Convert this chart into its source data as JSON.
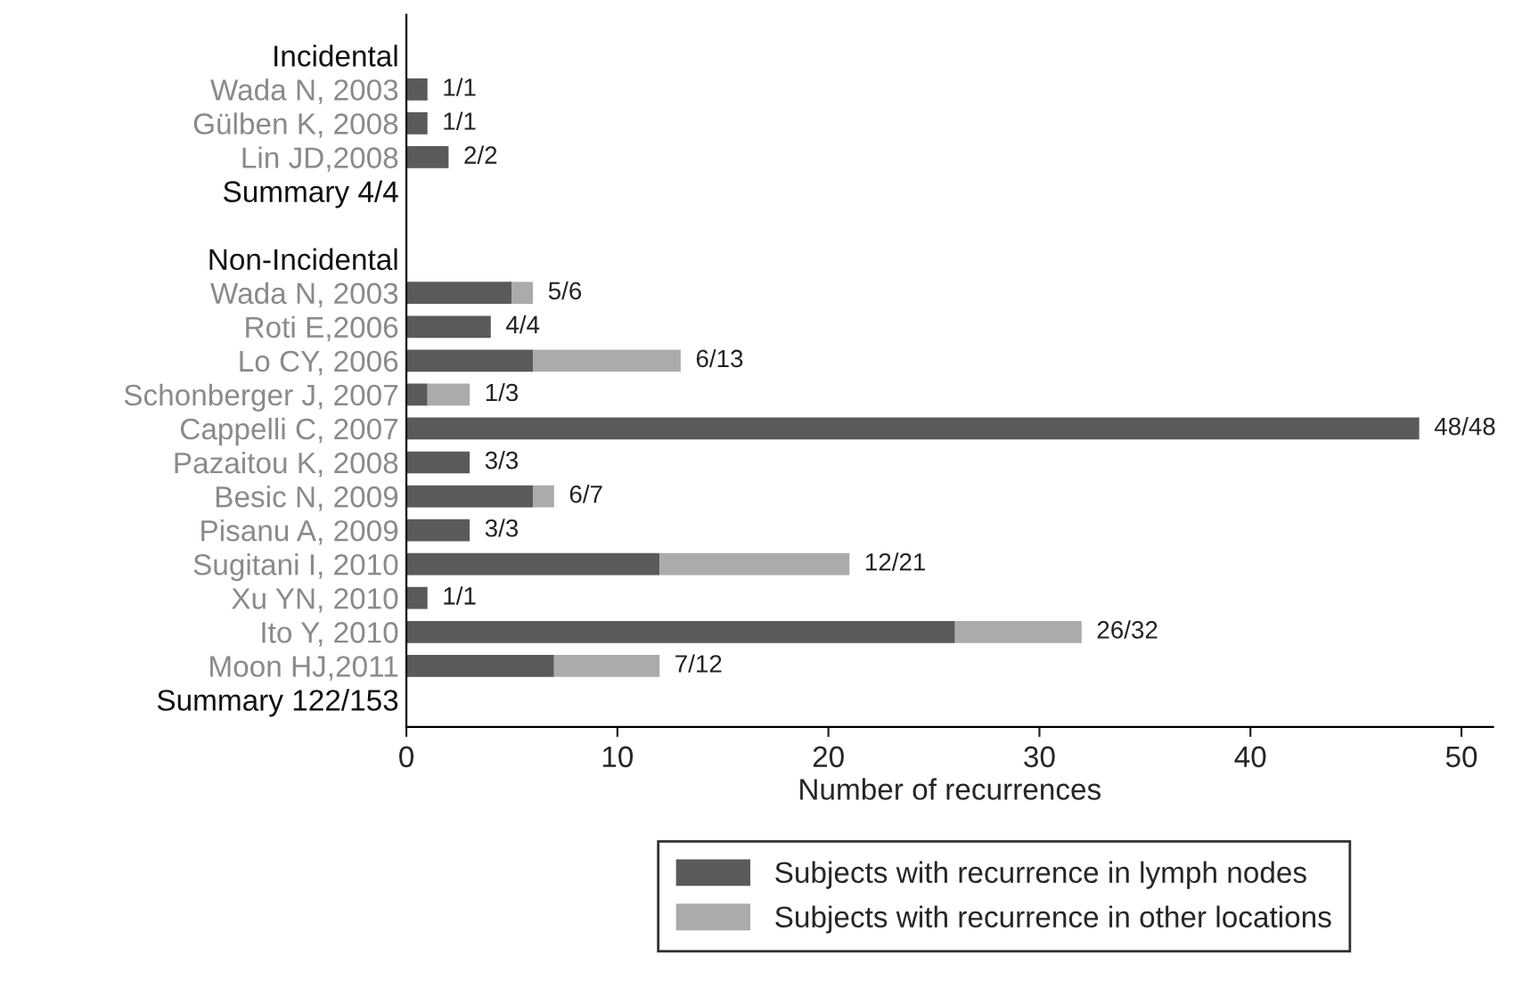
{
  "chart_data": {
    "type": "bar",
    "orientation": "horizontal",
    "stacked": true,
    "categories": [
      "Incidental",
      "Wada N, 2003",
      "Gülben K, 2008",
      "Lin JD,2008",
      "Summary 4/4",
      null,
      "Non-Incidental",
      "Wada N, 2003",
      "Roti E,2006",
      "Lo CY, 2006",
      "Schonberger J, 2007",
      "Cappelli C, 2007",
      "Pazaitou K, 2008",
      "Besic N, 2009",
      "Pisanu A, 2009",
      "Sugitani I, 2010",
      "Xu YN, 2010",
      "Ito Y, 2010",
      "Moon HJ,2011",
      "Summary 122/153"
    ],
    "series": [
      {
        "name": "Subjects with recurrence in lymph nodes",
        "color": "#5a5a5a",
        "values": [
          null,
          1,
          1,
          2,
          null,
          null,
          null,
          5,
          4,
          6,
          1,
          48,
          3,
          6,
          3,
          12,
          1,
          26,
          7,
          null
        ]
      },
      {
        "name": "Subjects with recurrence in other locations",
        "color": "#ababab",
        "values": [
          null,
          0,
          0,
          0,
          null,
          null,
          null,
          1,
          0,
          7,
          2,
          0,
          0,
          1,
          0,
          9,
          0,
          6,
          5,
          null
        ]
      }
    ],
    "value_labels": [
      null,
      "1/1",
      "1/1",
      "2/2",
      null,
      null,
      null,
      "5/6",
      "4/4",
      "6/13",
      "1/3",
      "48/48",
      "3/3",
      "6/7",
      "3/3",
      "12/21",
      "1/1",
      "26/32",
      "7/12",
      null
    ],
    "xlabel": "Number of recurrences",
    "xlim": [
      0,
      51.5
    ],
    "xticks": [
      0,
      10,
      20,
      30,
      40,
      50
    ],
    "grid": false,
    "legend": "bottom"
  }
}
